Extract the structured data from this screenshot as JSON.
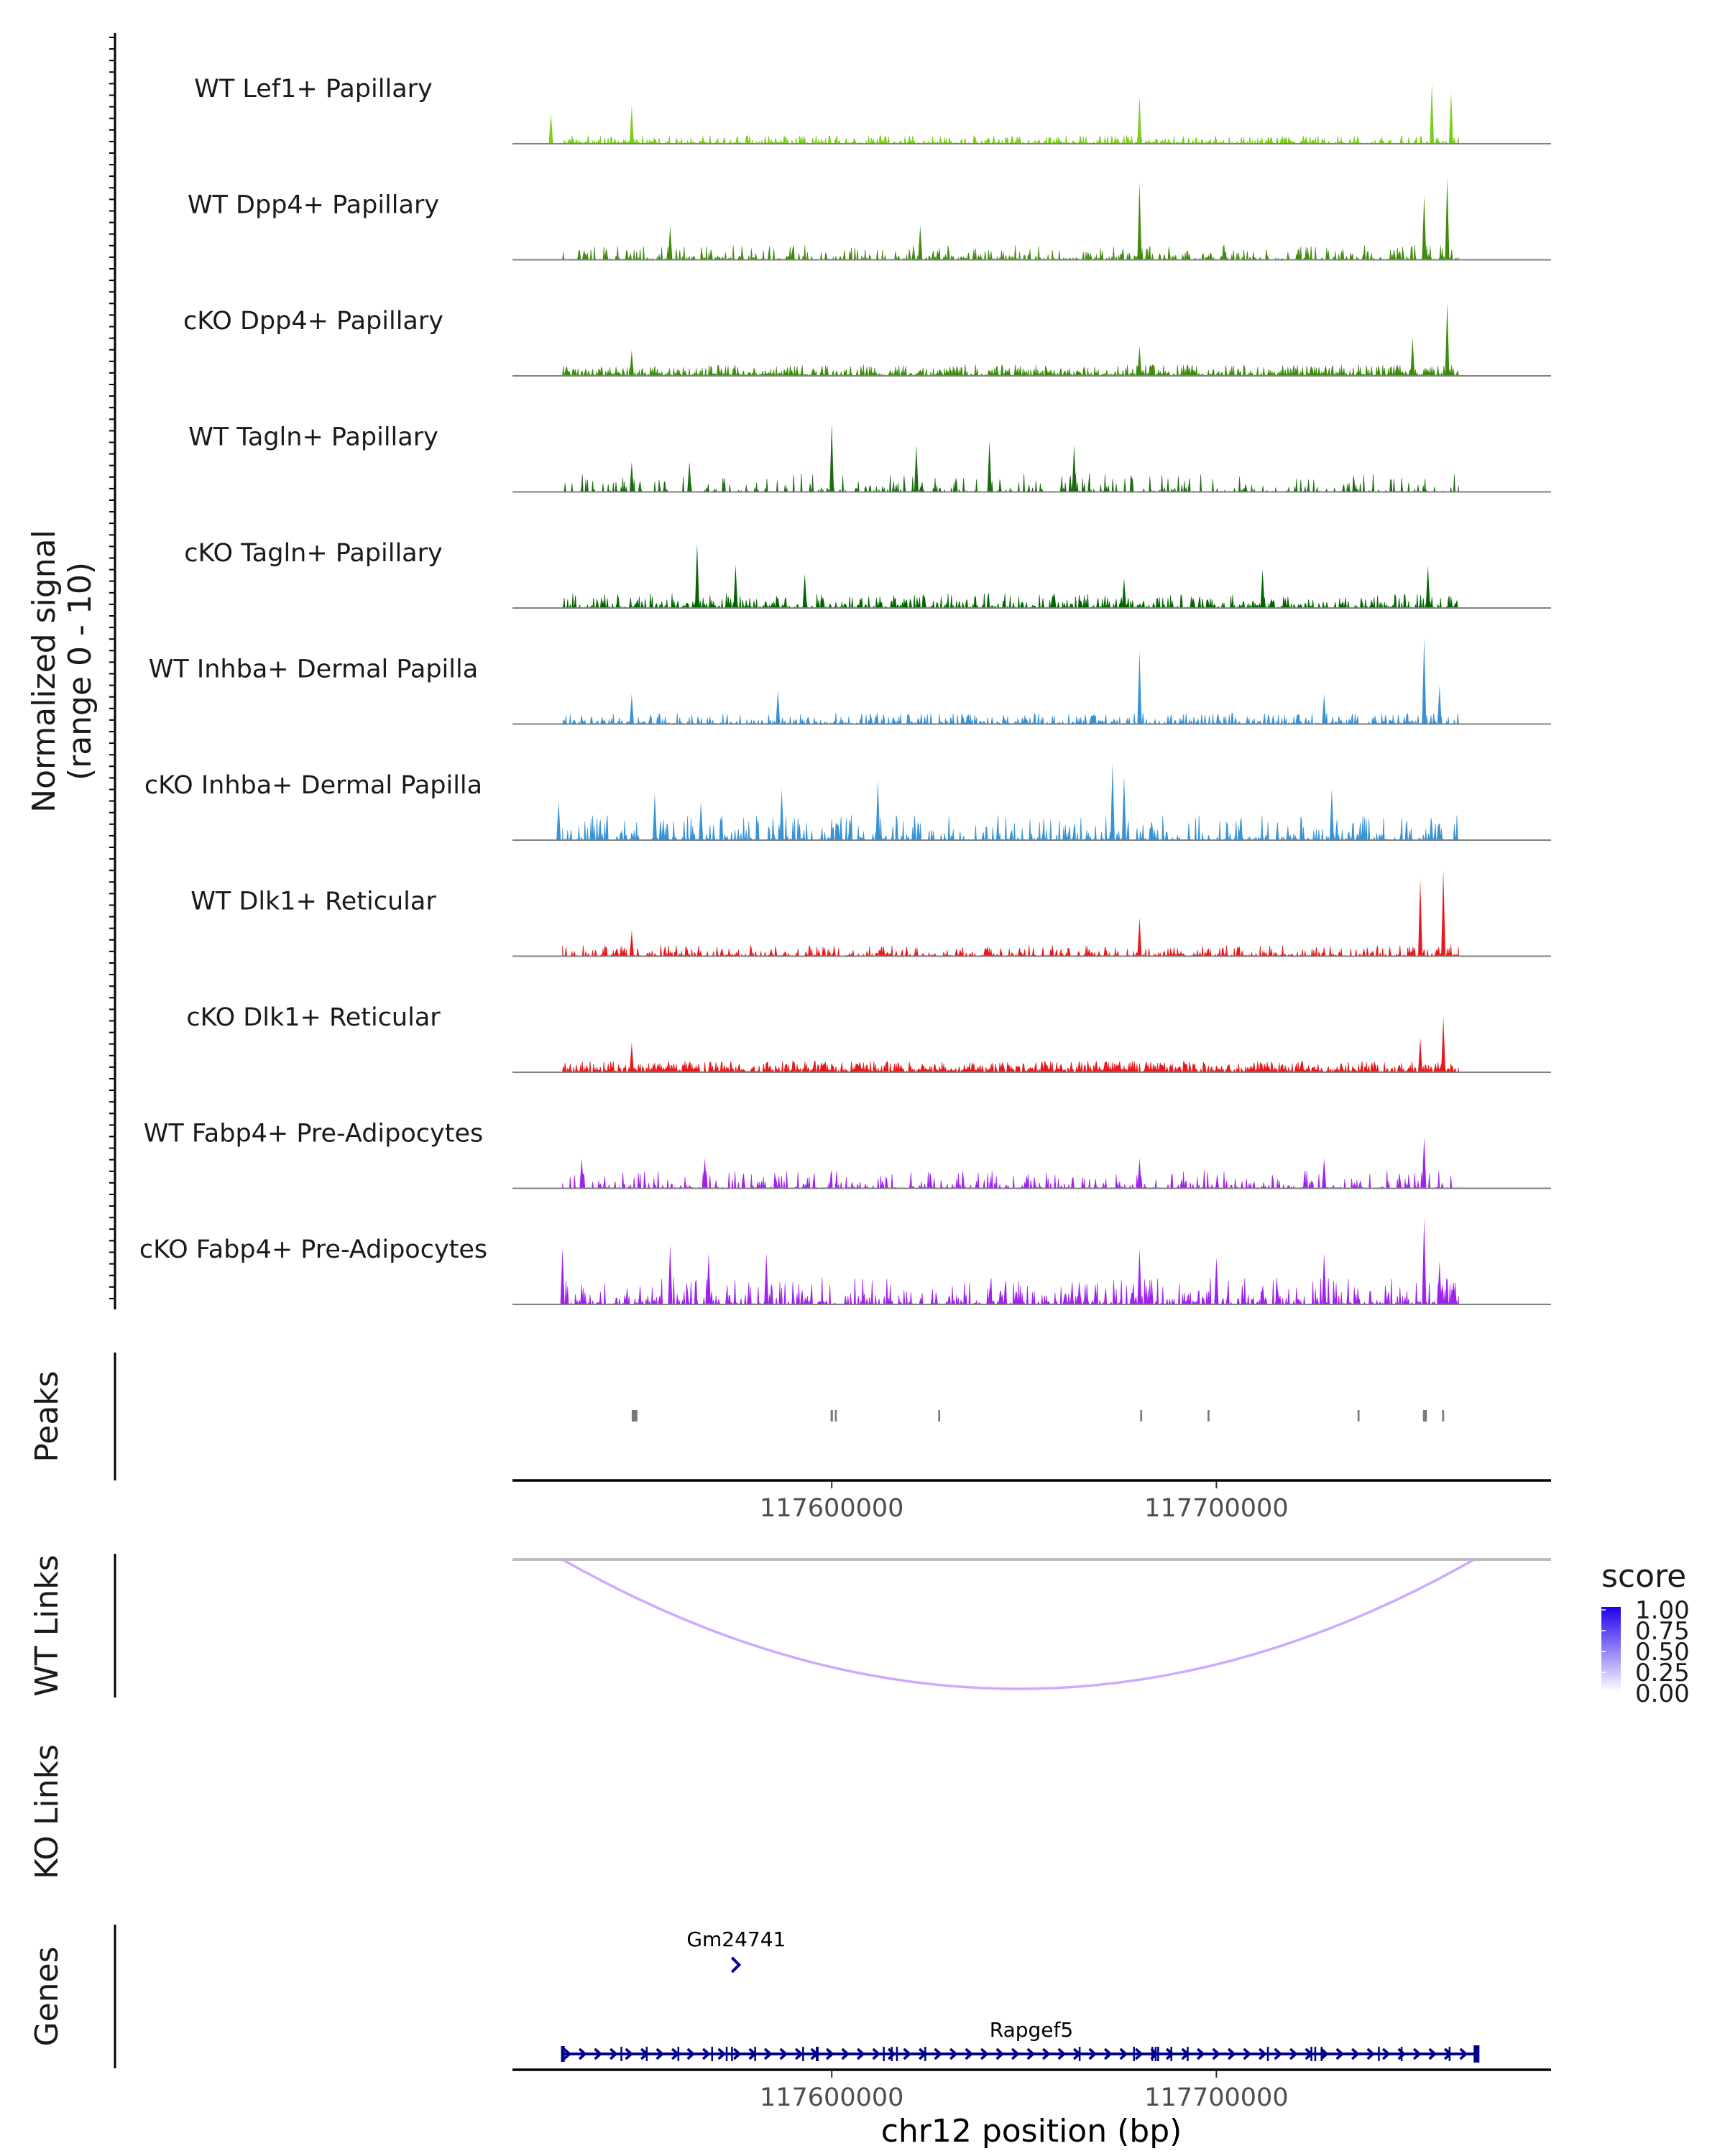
{
  "chart_data": {
    "type": "area",
    "region": "chr12",
    "xlim": [
      117517000,
      117787000
    ],
    "ylim": [
      0,
      10
    ],
    "x_ticks": [
      117600000,
      117700000
    ],
    "x_tick_labels": [
      "117600000",
      "117700000"
    ],
    "xlabel": "chr12 position (bp)",
    "signal_ylabel": [
      "Normalized signal",
      "(range 0 - 10)"
    ],
    "tracks": [
      {
        "name": "WT Lef1+ Papillary",
        "color": "#7CCD1C",
        "density": 0.55,
        "scale": 0.09,
        "peaks": [
          [
            117527000,
            0.35
          ],
          [
            117548000,
            0.45
          ],
          [
            117680000,
            0.55
          ],
          [
            117756000,
            0.7
          ],
          [
            117761000,
            0.6
          ]
        ]
      },
      {
        "name": "WT Dpp4+ Papillary",
        "color": "#3E8B0E",
        "density": 0.45,
        "scale": 0.16,
        "peaks": [
          [
            117558000,
            0.4
          ],
          [
            117623000,
            0.4
          ],
          [
            117680000,
            0.9
          ],
          [
            117754000,
            0.75
          ],
          [
            117760000,
            0.95
          ]
        ]
      },
      {
        "name": "cKO Dpp4+ Papillary",
        "color": "#3E8B0E",
        "density": 0.7,
        "scale": 0.12,
        "peaks": [
          [
            117548000,
            0.3
          ],
          [
            117680000,
            0.35
          ],
          [
            117751000,
            0.45
          ],
          [
            117760000,
            0.85
          ]
        ]
      },
      {
        "name": "WT Tagln+ Papillary",
        "color": "#1E6B14",
        "density": 0.28,
        "scale": 0.2,
        "peaks": [
          [
            117548000,
            0.35
          ],
          [
            117563000,
            0.35
          ],
          [
            117600000,
            0.8
          ],
          [
            117622000,
            0.55
          ],
          [
            117641000,
            0.6
          ],
          [
            117663000,
            0.55
          ]
        ]
      },
      {
        "name": "cKO Tagln+ Papillary",
        "color": "#006400",
        "density": 0.55,
        "scale": 0.16,
        "peaks": [
          [
            117565000,
            0.75
          ],
          [
            117575000,
            0.5
          ],
          [
            117593000,
            0.4
          ],
          [
            117676000,
            0.35
          ],
          [
            117712000,
            0.45
          ],
          [
            117755000,
            0.5
          ]
        ]
      },
      {
        "name": "WT Inhba+ Dermal Papilla",
        "color": "#3792D6",
        "density": 0.5,
        "scale": 0.12,
        "peaks": [
          [
            117548000,
            0.35
          ],
          [
            117586000,
            0.4
          ],
          [
            117680000,
            0.85
          ],
          [
            117728000,
            0.35
          ],
          [
            117754000,
            1.0
          ],
          [
            117758000,
            0.45
          ]
        ]
      },
      {
        "name": "cKO Inhba+ Dermal Papilla",
        "color": "#3792D6",
        "density": 0.42,
        "scale": 0.28,
        "peaks": [
          [
            117529000,
            0.45
          ],
          [
            117554000,
            0.55
          ],
          [
            117566000,
            0.45
          ],
          [
            117587000,
            0.6
          ],
          [
            117612000,
            0.7
          ],
          [
            117673000,
            0.9
          ],
          [
            117676000,
            0.75
          ],
          [
            117730000,
            0.6
          ]
        ]
      },
      {
        "name": "WT Dlk1+ Reticular",
        "color": "#E8191C",
        "density": 0.5,
        "scale": 0.12,
        "peaks": [
          [
            117548000,
            0.3
          ],
          [
            117680000,
            0.45
          ],
          [
            117753000,
            0.9
          ],
          [
            117759000,
            1.0
          ]
        ]
      },
      {
        "name": "cKO Dlk1+ Reticular",
        "color": "#E8191C",
        "density": 0.85,
        "scale": 0.12,
        "peaks": [
          [
            117548000,
            0.35
          ],
          [
            117753000,
            0.4
          ],
          [
            117759000,
            0.65
          ]
        ]
      },
      {
        "name": "WT Fabp4+ Pre-Adipocytes",
        "color": "#A020F0",
        "density": 0.35,
        "scale": 0.2,
        "peaks": [
          [
            117535000,
            0.35
          ],
          [
            117567000,
            0.35
          ],
          [
            117680000,
            0.35
          ],
          [
            117728000,
            0.35
          ],
          [
            117754000,
            0.6
          ]
        ]
      },
      {
        "name": "cKO Fabp4+ Pre-Adipocytes",
        "color": "#A020F0",
        "density": 0.45,
        "scale": 0.3,
        "peaks": [
          [
            117530000,
            0.65
          ],
          [
            117558000,
            0.7
          ],
          [
            117568000,
            0.6
          ],
          [
            117583000,
            0.6
          ],
          [
            117680000,
            0.65
          ],
          [
            117700000,
            0.55
          ],
          [
            117728000,
            0.6
          ],
          [
            117754000,
            1.0
          ],
          [
            117758000,
            0.5
          ]
        ]
      }
    ],
    "peaks_track": {
      "label": "Peaks",
      "regions": [
        [
          117548000,
          117549500
        ],
        [
          117599700,
          117600300
        ],
        [
          117600800,
          117601300
        ],
        [
          117627700,
          117628200
        ],
        [
          117680200,
          117680700
        ],
        [
          117697700,
          117698200
        ],
        [
          117736700,
          117737200
        ],
        [
          117753700,
          117754700
        ],
        [
          117758700,
          117759200
        ]
      ]
    },
    "wt_links": {
      "label": "WT Links",
      "links": [
        {
          "start": 117530000,
          "end": 117767000,
          "score": 0.25
        }
      ]
    },
    "ko_links": {
      "label": "KO Links",
      "links": []
    },
    "legend": {
      "title": "score",
      "ticks": [
        "1.00",
        "0.75",
        "0.50",
        "0.25",
        "0.00"
      ]
    },
    "genes": {
      "label": "Genes",
      "items": [
        {
          "name": "Gm24741",
          "start": 117574800,
          "end": 117575600,
          "strand": "+"
        },
        {
          "name": "Rapgef5",
          "start": 117530000,
          "end": 117768000,
          "strand": "+"
        }
      ]
    }
  }
}
